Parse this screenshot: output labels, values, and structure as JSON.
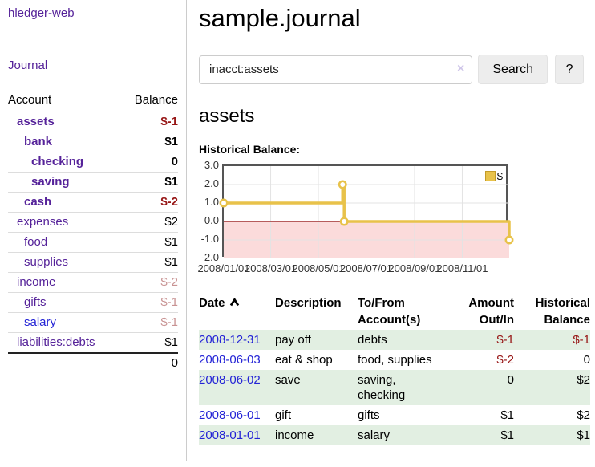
{
  "colors": {
    "link_purple": "#552299",
    "link_blue": "#2424d6",
    "negative": "#971616",
    "negative_faded": "#c89393",
    "row_green": "#e2efe2",
    "chart_gold": "#e8c24a",
    "chart_pink": "#fbdbdb",
    "zero_line": "#8d1111"
  },
  "icons": {
    "clear_search": "×",
    "sort_ascending": "chevron-up"
  },
  "sidebar": {
    "brand": "hledger-web",
    "journal_link": "Journal",
    "accounts": {
      "header": {
        "account": "Account",
        "balance": "Balance"
      },
      "rows": [
        {
          "name": "assets",
          "indent": 0,
          "bold": true,
          "balance": "$-1",
          "neg": "strong"
        },
        {
          "name": "bank",
          "indent": 1,
          "bold": true,
          "balance": "$1",
          "neg": "none"
        },
        {
          "name": "checking",
          "indent": 2,
          "bold": true,
          "balance": "0",
          "neg": "none"
        },
        {
          "name": "saving",
          "indent": 2,
          "bold": true,
          "balance": "$1",
          "neg": "none"
        },
        {
          "name": "cash",
          "indent": 1,
          "bold": true,
          "balance": "$-2",
          "neg": "strong"
        },
        {
          "name": "expenses",
          "indent": 0,
          "bold": false,
          "balance": "$2",
          "neg": "none"
        },
        {
          "name": "food",
          "indent": 1,
          "bold": false,
          "balance": "$1",
          "neg": "none"
        },
        {
          "name": "supplies",
          "indent": 1,
          "bold": false,
          "balance": "$1",
          "neg": "none"
        },
        {
          "name": "income",
          "indent": 0,
          "bold": false,
          "balance": "$-2",
          "neg": "faded"
        },
        {
          "name": "gifts",
          "indent": 1,
          "bold": false,
          "balance": "$-1",
          "neg": "faded"
        },
        {
          "name": "salary",
          "indent": 1,
          "bold": false,
          "balance": "$-1",
          "neg": "faded",
          "link_color": "blue"
        },
        {
          "name": "liabilities:debts",
          "indent": 0,
          "bold": false,
          "balance": "$1",
          "neg": "none"
        }
      ],
      "total": "0"
    }
  },
  "header": {
    "title": "sample.journal"
  },
  "search": {
    "value": "inacct:assets",
    "button_label": "Search",
    "help_label": "?"
  },
  "account_page": {
    "heading": "assets",
    "chart_label": "Historical Balance:"
  },
  "chart_data": {
    "type": "line",
    "line_style": "step",
    "title": "Historical Balance:",
    "series": [
      {
        "name": "$",
        "points": [
          [
            "2008-01-01",
            1
          ],
          [
            "2008-06-01",
            2
          ],
          [
            "2008-06-03",
            0
          ],
          [
            "2008-12-31",
            -1
          ]
        ]
      }
    ],
    "x_range": [
      "2008-01-01",
      "2008-12-31"
    ],
    "x_ticks": [
      {
        "date": "2008-01-01",
        "label": "2008/01/01"
      },
      {
        "date": "2008-03-01",
        "label": "2008/03/01"
      },
      {
        "date": "2008-05-01",
        "label": "2008/05/01"
      },
      {
        "date": "2008-07-01",
        "label": "2008/07/01"
      },
      {
        "date": "2008-09-01",
        "label": "2008/09/01"
      },
      {
        "date": "2008-11-01",
        "label": "2008/11/01"
      }
    ],
    "y_ticks": [
      {
        "value": 3,
        "label": "3.0"
      },
      {
        "value": 2,
        "label": "2.0"
      },
      {
        "value": 1,
        "label": "1.0"
      },
      {
        "value": 0,
        "label": "0.0"
      },
      {
        "value": -1,
        "label": "-1.0"
      },
      {
        "value": -2,
        "label": "-2.0"
      }
    ],
    "ylim": [
      -2,
      3
    ],
    "grid": true,
    "negative_region_shaded": true,
    "legend": {
      "position": "top-right",
      "label": "$"
    }
  },
  "register": {
    "headers": [
      "Date",
      "Description",
      "To/From Account(s)",
      "Amount Out/In",
      "Historical Balance"
    ],
    "sort": {
      "column": "Date",
      "direction": "ascending"
    },
    "rows": [
      {
        "date": "2008-12-31",
        "description": "pay off",
        "accounts": "debts",
        "amount": "$-1",
        "amount_neg": true,
        "balance": "$-1",
        "balance_neg": true
      },
      {
        "date": "2008-06-03",
        "description": "eat & shop",
        "accounts": "food, supplies",
        "amount": "$-2",
        "amount_neg": true,
        "balance": "0",
        "balance_neg": false
      },
      {
        "date": "2008-06-02",
        "description": "save",
        "accounts": "saving, checking",
        "amount": "0",
        "amount_neg": false,
        "balance": "$2",
        "balance_neg": false
      },
      {
        "date": "2008-06-01",
        "description": "gift",
        "accounts": "gifts",
        "amount": "$1",
        "amount_neg": false,
        "balance": "$2",
        "balance_neg": false
      },
      {
        "date": "2008-01-01",
        "description": "income",
        "accounts": "salary",
        "amount": "$1",
        "amount_neg": false,
        "balance": "$1",
        "balance_neg": false
      }
    ]
  }
}
